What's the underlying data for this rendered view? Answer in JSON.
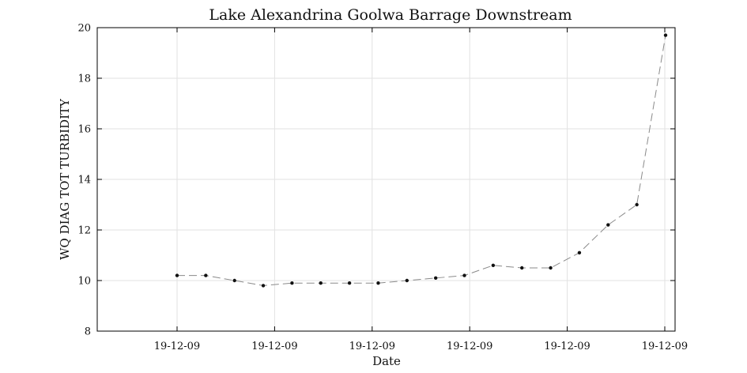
{
  "chart_data": {
    "type": "line",
    "title": "Lake Alexandrina Goolwa Barrage Downstream",
    "xlabel": "Date",
    "ylabel": "WQ DIAG TOT TURBIDITY",
    "xtick_labels": [
      "19-12-09",
      "19-12-09",
      "19-12-09",
      "19-12-09",
      "19-12-09",
      "19-12-09"
    ],
    "ylim": [
      8,
      20
    ],
    "yticks": [
      8,
      10,
      12,
      14,
      16,
      18,
      20
    ],
    "grid": true,
    "series": [
      {
        "values": [
          10.2,
          10.2,
          10.0,
          9.8,
          9.9,
          9.9,
          9.9,
          9.9,
          10.0,
          10.1,
          10.2,
          10.6,
          10.5,
          10.5,
          11.1,
          12.2,
          13.0,
          19.7
        ]
      }
    ]
  }
}
